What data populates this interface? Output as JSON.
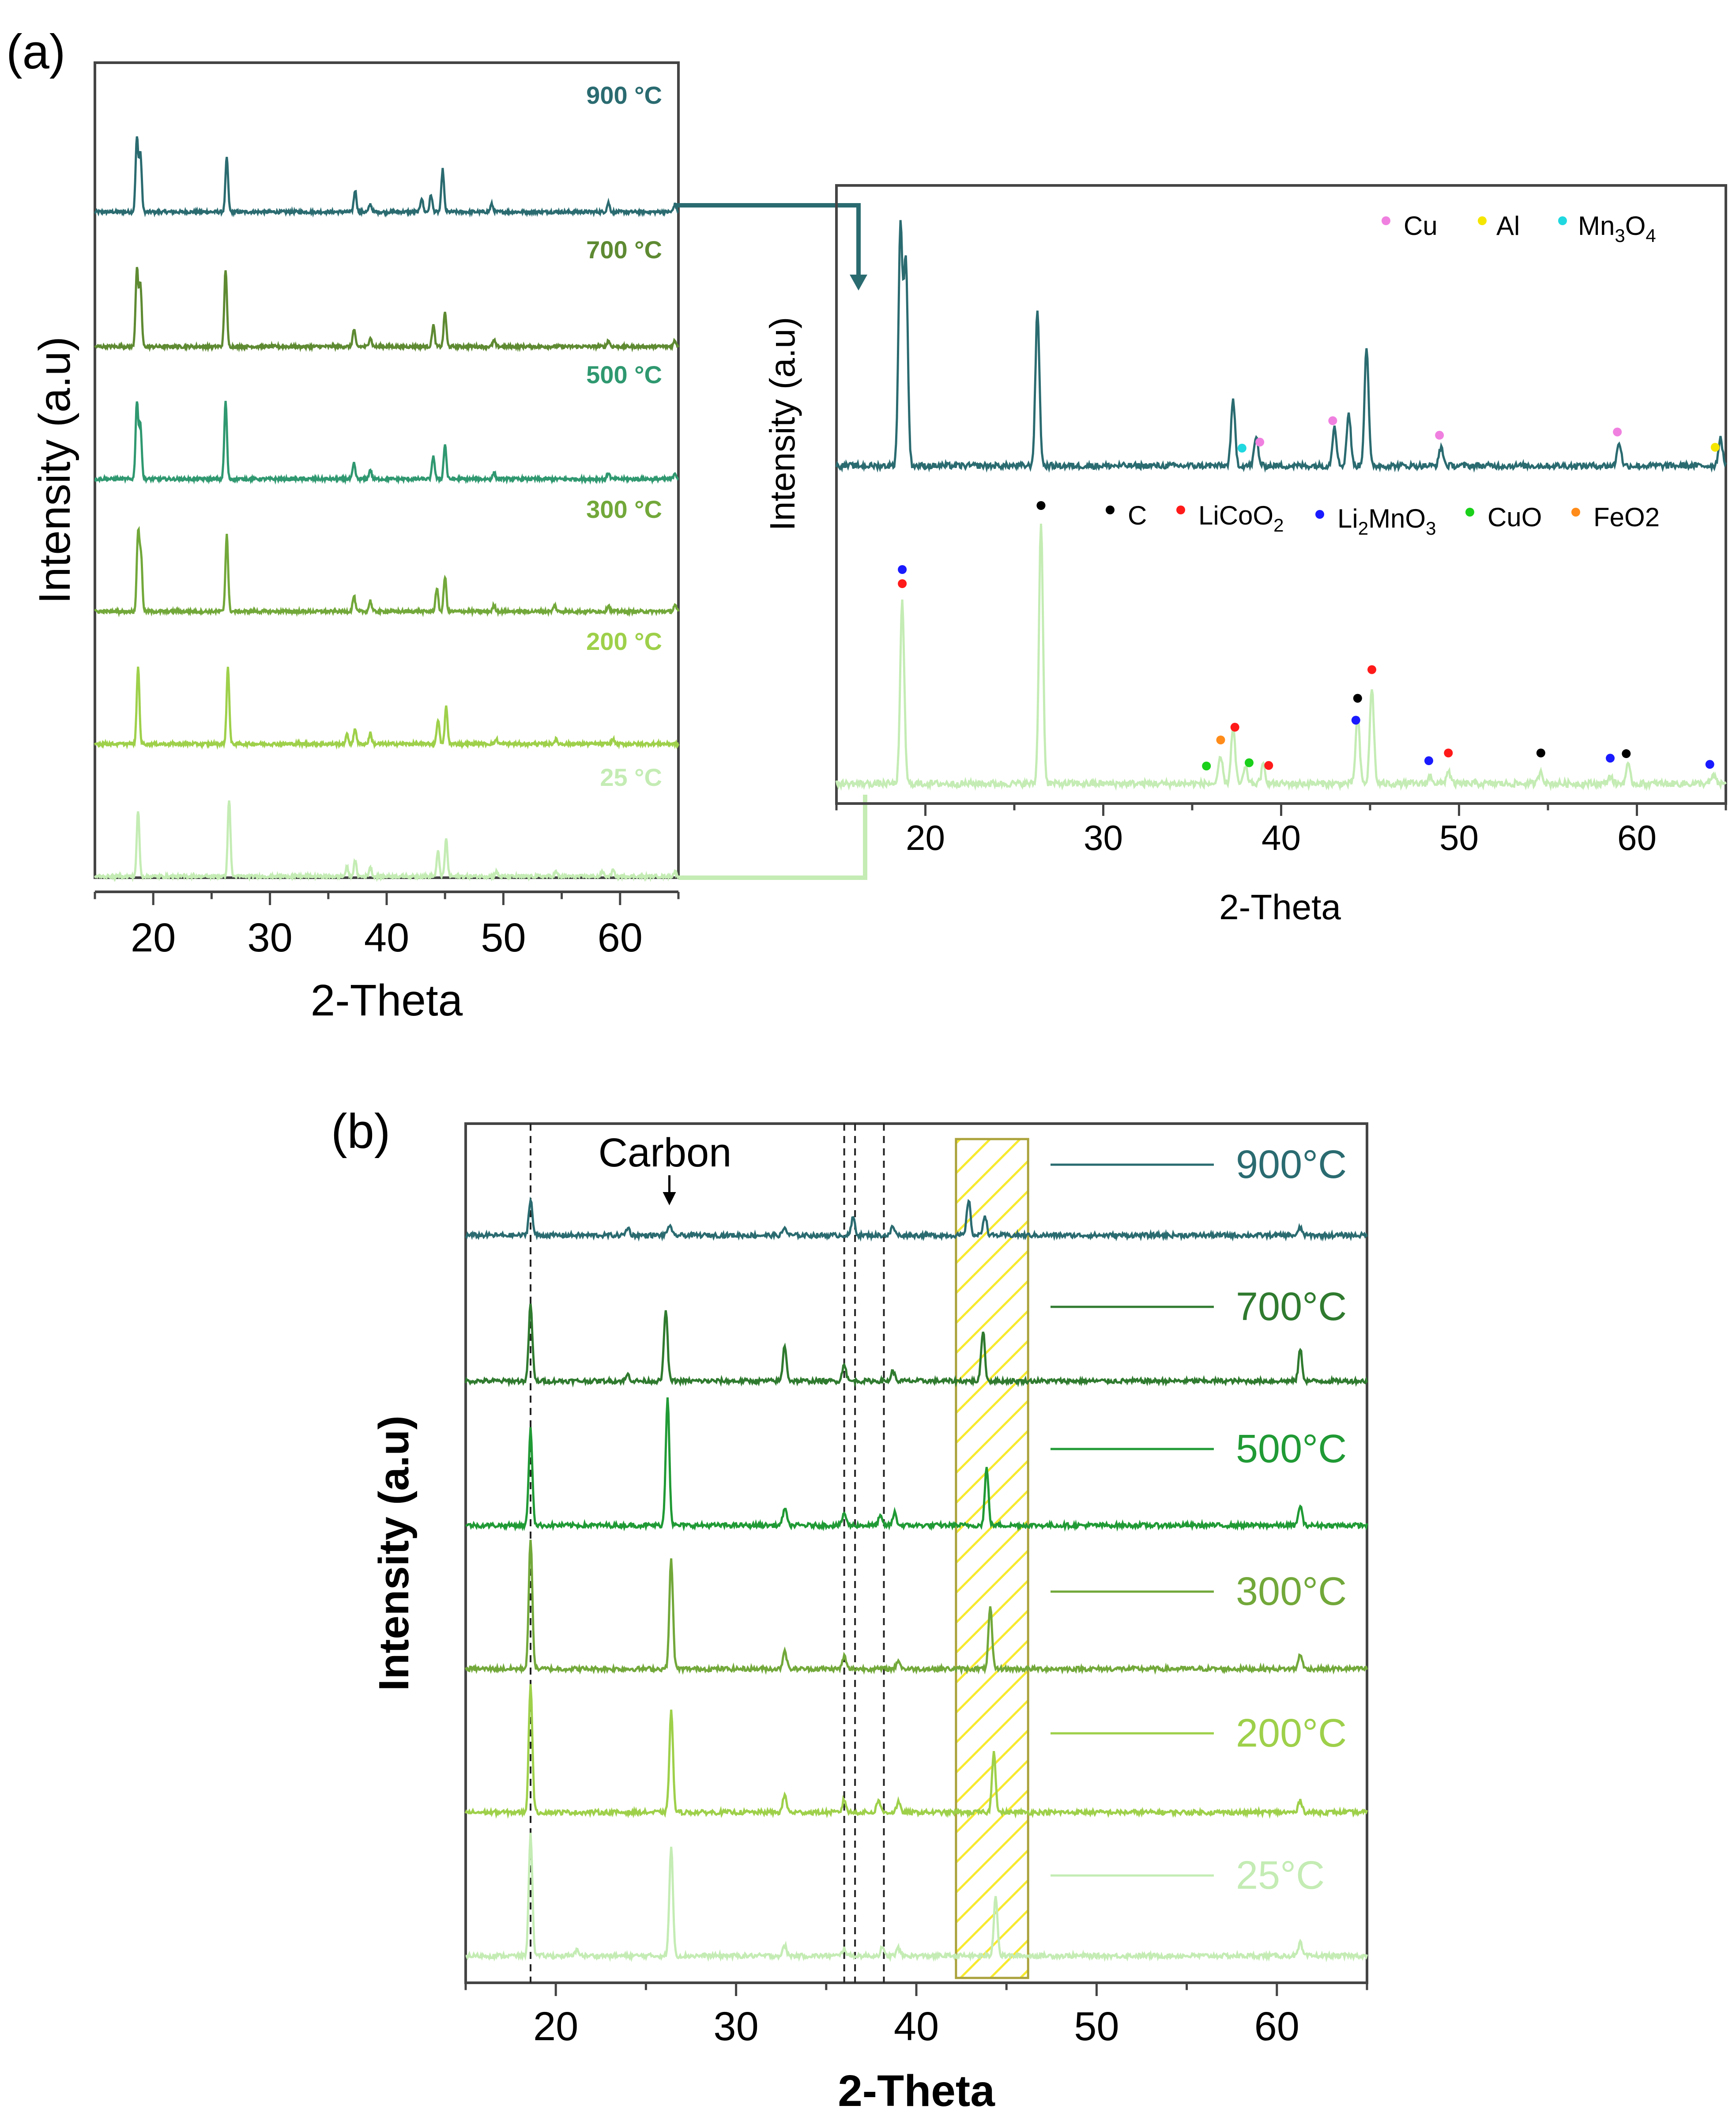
{
  "panels": {
    "a_label": "(a)",
    "b_label": "(b)"
  },
  "chart_data": [
    {
      "id": "a-left",
      "type": "line",
      "title": "",
      "xlabel": "2-Theta",
      "ylabel": "Intensity (a.u)",
      "xlim": [
        15,
        65
      ],
      "xticks": [
        20,
        30,
        40,
        50,
        60
      ],
      "series": [
        {
          "name": "900 °C",
          "color": "#2a6b70",
          "peaks": [
            [
              18.6,
              0.95
            ],
            [
              18.9,
              0.75
            ],
            [
              26.3,
              0.7
            ],
            [
              37.3,
              0.28
            ],
            [
              38.6,
              0.1
            ],
            [
              43.0,
              0.18
            ],
            [
              43.8,
              0.22
            ],
            [
              44.8,
              0.55
            ],
            [
              49.0,
              0.1
            ],
            [
              59.0,
              0.12
            ],
            [
              64.7,
              0.1
            ]
          ]
        },
        {
          "name": "700 °C",
          "color": "#5e8a32",
          "peaks": [
            [
              18.6,
              1.0
            ],
            [
              18.9,
              0.8
            ],
            [
              26.2,
              1.0
            ],
            [
              37.2,
              0.22
            ],
            [
              38.6,
              0.12
            ],
            [
              44.0,
              0.28
            ],
            [
              45.0,
              0.45
            ],
            [
              49.2,
              0.08
            ],
            [
              59.0,
              0.08
            ],
            [
              64.7,
              0.08
            ]
          ]
        },
        {
          "name": "500 °C",
          "color": "#2f9870",
          "peaks": [
            [
              18.6,
              1.0
            ],
            [
              18.9,
              0.7
            ],
            [
              26.2,
              1.0
            ],
            [
              37.2,
              0.2
            ],
            [
              38.6,
              0.12
            ],
            [
              44.0,
              0.3
            ],
            [
              45.0,
              0.45
            ],
            [
              49.2,
              0.08
            ],
            [
              59.0,
              0.08
            ],
            [
              64.7,
              0.08
            ]
          ]
        },
        {
          "name": "300 °C",
          "color": "#72a83a",
          "peaks": [
            [
              18.7,
              1.0
            ],
            [
              18.95,
              0.7
            ],
            [
              26.3,
              1.0
            ],
            [
              37.2,
              0.2
            ],
            [
              38.6,
              0.14
            ],
            [
              44.3,
              0.3
            ],
            [
              45.0,
              0.45
            ],
            [
              49.2,
              0.08
            ],
            [
              54.4,
              0.08
            ],
            [
              59.0,
              0.08
            ],
            [
              64.7,
              0.08
            ]
          ]
        },
        {
          "name": "200 °C",
          "color": "#9ed04a",
          "peaks": [
            [
              18.7,
              1.0
            ],
            [
              26.4,
              1.0
            ],
            [
              36.6,
              0.12
            ],
            [
              37.3,
              0.2
            ],
            [
              38.6,
              0.14
            ],
            [
              44.4,
              0.32
            ],
            [
              45.1,
              0.48
            ],
            [
              49.4,
              0.06
            ],
            [
              54.5,
              0.06
            ],
            [
              59.4,
              0.06
            ]
          ]
        },
        {
          "name": "25 °C",
          "color": "#c4ecb4",
          "peaks": [
            [
              18.7,
              0.85
            ],
            [
              26.5,
              1.0
            ],
            [
              36.6,
              0.12
            ],
            [
              37.3,
              0.2
            ],
            [
              38.6,
              0.12
            ],
            [
              44.4,
              0.32
            ],
            [
              45.1,
              0.48
            ],
            [
              49.4,
              0.06
            ],
            [
              54.5,
              0.06
            ],
            [
              58.5,
              0.06
            ],
            [
              59.4,
              0.08
            ],
            [
              64.7,
              0.06
            ]
          ]
        }
      ]
    },
    {
      "id": "a-right",
      "type": "line",
      "title": "",
      "xlabel": "2-Theta",
      "ylabel": "Intensity (a.u)",
      "xlim": [
        15,
        65
      ],
      "xticks": [
        20,
        30,
        40,
        50,
        60
      ],
      "series": [
        {
          "name": "900 °C",
          "color": "#2a6b70",
          "peaks": [
            [
              18.6,
              1.0
            ],
            [
              18.9,
              0.86
            ],
            [
              26.3,
              0.65
            ],
            [
              37.3,
              0.27
            ],
            [
              38.6,
              0.12
            ],
            [
              43.0,
              0.17
            ],
            [
              43.8,
              0.22
            ],
            [
              44.8,
              0.5
            ],
            [
              49.0,
              0.08
            ],
            [
              59.0,
              0.1
            ],
            [
              64.7,
              0.12
            ]
          ]
        },
        {
          "name": "25 °C",
          "color": "#c4ecb4",
          "peaks": [
            [
              18.7,
              0.7
            ],
            [
              26.5,
              1.0
            ],
            [
              36.6,
              0.1
            ],
            [
              37.3,
              0.22
            ],
            [
              38.0,
              0.06
            ],
            [
              39.0,
              0.07
            ],
            [
              44.3,
              0.26
            ],
            [
              45.1,
              0.37
            ],
            [
              48.4,
              0.03
            ],
            [
              49.4,
              0.05
            ],
            [
              54.6,
              0.05
            ],
            [
              58.5,
              0.03
            ],
            [
              59.5,
              0.07
            ],
            [
              64.3,
              0.03
            ]
          ]
        }
      ],
      "legends": [
        {
          "text": "Cu",
          "color": "#f080e0"
        },
        {
          "text": "Al",
          "color": "#f5e600"
        },
        {
          "text": "Mn3O4",
          "color": "#20d8e0"
        },
        {
          "text": "C",
          "color": "#000000"
        },
        {
          "text": "LiCoO2",
          "color": "#ff1a1a"
        },
        {
          "text": "Li2MnO3",
          "color": "#1a1aff"
        },
        {
          "text": "CuO",
          "color": "#1ad01a"
        },
        {
          "text": "FeO2",
          "color": "#ff8c1a"
        }
      ],
      "markers_900": [
        {
          "x": 37.8,
          "phase": "Mn3O4"
        },
        {
          "x": 38.8,
          "phase": "Cu"
        },
        {
          "x": 42.9,
          "phase": "Cu"
        },
        {
          "x": 48.9,
          "phase": "Cu"
        },
        {
          "x": 58.9,
          "phase": "Cu"
        },
        {
          "x": 64.4,
          "phase": "Al"
        }
      ],
      "markers_25": [
        {
          "x": 18.7,
          "phase": "Li2MnO3"
        },
        {
          "x": 18.7,
          "phase": "LiCoO2"
        },
        {
          "x": 26.5,
          "phase": "C"
        },
        {
          "x": 35.8,
          "phase": "CuO"
        },
        {
          "x": 36.6,
          "phase": "FeO2"
        },
        {
          "x": 37.4,
          "phase": "LiCoO2"
        },
        {
          "x": 38.2,
          "phase": "CuO"
        },
        {
          "x": 39.3,
          "phase": "LiCoO2"
        },
        {
          "x": 44.2,
          "phase": "Li2MnO3"
        },
        {
          "x": 44.3,
          "phase": "C"
        },
        {
          "x": 45.1,
          "phase": "LiCoO2"
        },
        {
          "x": 48.3,
          "phase": "Li2MnO3"
        },
        {
          "x": 49.4,
          "phase": "LiCoO2"
        },
        {
          "x": 54.6,
          "phase": "C"
        },
        {
          "x": 58.5,
          "phase": "Li2MnO3"
        },
        {
          "x": 59.4,
          "phase": "C"
        },
        {
          "x": 64.1,
          "phase": "Li2MnO3"
        }
      ]
    },
    {
      "id": "b",
      "type": "line",
      "title": "",
      "xlabel": "2-Theta",
      "ylabel": "Intensity (a.u)",
      "xlim": [
        15,
        65
      ],
      "xticks": [
        20,
        30,
        40,
        50,
        60
      ],
      "annotation": "Carbon",
      "annotation_x": 26.3,
      "dashed_lines_x": [
        18.6,
        36.0,
        36.6,
        38.2
      ],
      "highlight_range_x": [
        42.2,
        46.2
      ],
      "series": [
        {
          "name": "900°C",
          "color": "#2a6b70",
          "peaks": [
            [
              18.6,
              0.28
            ],
            [
              24.0,
              0.06
            ],
            [
              26.3,
              0.08
            ],
            [
              32.7,
              0.06
            ],
            [
              36.5,
              0.14
            ],
            [
              38.7,
              0.07
            ],
            [
              42.9,
              0.28
            ],
            [
              43.8,
              0.16
            ],
            [
              61.3,
              0.06
            ]
          ]
        },
        {
          "name": "700°C",
          "color": "#2f7a2f",
          "peaks": [
            [
              18.6,
              0.6
            ],
            [
              24.0,
              0.05
            ],
            [
              26.1,
              0.56
            ],
            [
              32.7,
              0.28
            ],
            [
              36.0,
              0.14
            ],
            [
              38.7,
              0.08
            ],
            [
              43.7,
              0.4
            ],
            [
              61.3,
              0.25
            ]
          ]
        },
        {
          "name": "500°C",
          "color": "#209a35",
          "peaks": [
            [
              18.6,
              0.75
            ],
            [
              26.2,
              1.0
            ],
            [
              32.7,
              0.14
            ],
            [
              36.0,
              0.1
            ],
            [
              38.0,
              0.07
            ],
            [
              38.8,
              0.1
            ],
            [
              43.9,
              0.45
            ],
            [
              61.3,
              0.16
            ]
          ]
        },
        {
          "name": "300°C",
          "color": "#72a83a",
          "peaks": [
            [
              18.6,
              1.0
            ],
            [
              26.4,
              0.85
            ],
            [
              32.7,
              0.15
            ],
            [
              36.0,
              0.1
            ],
            [
              39.0,
              0.07
            ],
            [
              44.1,
              0.48
            ],
            [
              61.3,
              0.12
            ]
          ]
        },
        {
          "name": "200°C",
          "color": "#9ed04a",
          "peaks": [
            [
              18.6,
              1.0
            ],
            [
              26.4,
              0.8
            ],
            [
              32.7,
              0.14
            ],
            [
              36.0,
              0.1
            ],
            [
              37.9,
              0.1
            ],
            [
              39.0,
              0.08
            ],
            [
              44.3,
              0.48
            ],
            [
              61.3,
              0.1
            ]
          ]
        },
        {
          "name": "25°C",
          "color": "#c4ecb4",
          "peaks": [
            [
              18.6,
              0.95
            ],
            [
              21.2,
              0.05
            ],
            [
              26.4,
              0.85
            ],
            [
              32.7,
              0.08
            ],
            [
              36.0,
              0.06
            ],
            [
              38.1,
              0.06
            ],
            [
              39.0,
              0.06
            ],
            [
              44.4,
              0.48
            ],
            [
              61.3,
              0.1
            ]
          ]
        }
      ]
    }
  ]
}
